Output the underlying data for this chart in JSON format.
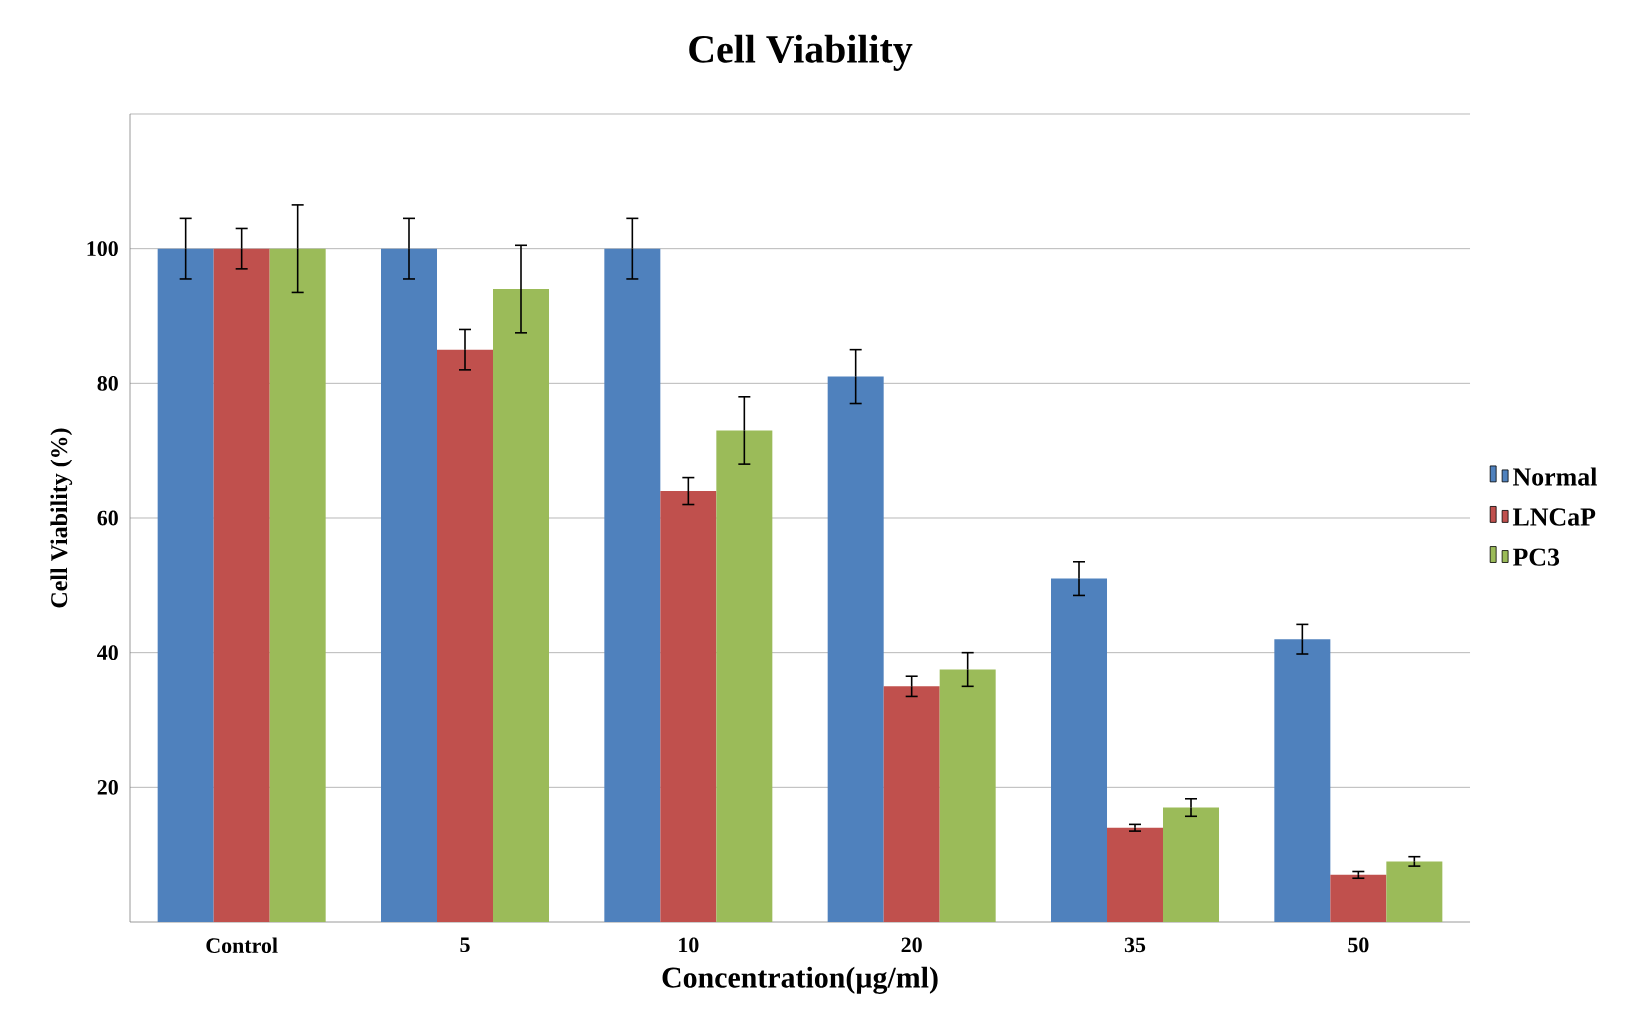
{
  "chart_data": {
    "type": "bar",
    "title": "Cell Viability",
    "xlabel": "Concentration(µg/ml)",
    "ylabel": "Cell Viability  (%)",
    "categories": [
      "Control",
      "5",
      "10",
      "20",
      "35",
      "50"
    ],
    "series": [
      {
        "name": "Normal",
        "color": "#4f81bd",
        "values": [
          100,
          100,
          100,
          81,
          51,
          42
        ],
        "errors": [
          4.5,
          4.5,
          4.5,
          4,
          2.5,
          2.2
        ]
      },
      {
        "name": "LNCaP",
        "color": "#c0504d",
        "values": [
          100,
          85,
          64,
          35,
          14,
          7
        ],
        "errors": [
          3,
          3,
          2,
          1.5,
          0.5,
          0.5
        ]
      },
      {
        "name": "PC3",
        "color": "#9bbb59",
        "values": [
          100,
          94,
          73,
          37.5,
          17,
          9
        ],
        "errors": [
          6.5,
          6.5,
          5,
          2.5,
          1.3,
          0.7
        ]
      }
    ],
    "ylim": [
      0,
      120
    ],
    "yticks": [
      20,
      40,
      60,
      80,
      100,
      {
        "value": 120,
        "label": null
      }
    ],
    "grid": "y",
    "legend": "right"
  }
}
